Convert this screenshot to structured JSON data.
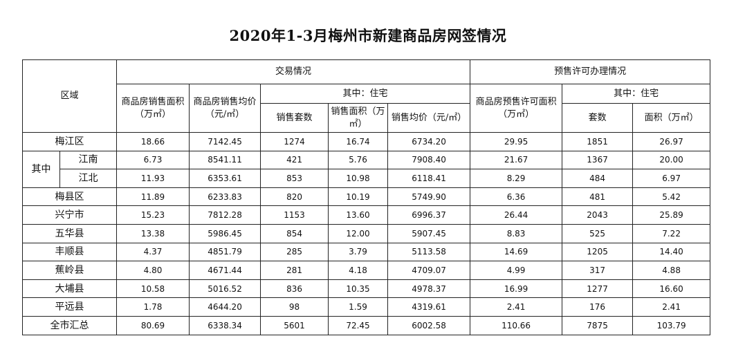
{
  "title": "2020年1-3月梅州市新建商品房网签情况",
  "headers": {
    "region": "区域",
    "trade": "交易情况",
    "presale": "预售许可办理情况",
    "area": "商品房销售面积（万㎡）",
    "price": "商品房销售均价（元/㎡）",
    "residential": "其中：住宅",
    "units": "销售套数",
    "res_area": "销售面积（万㎡）",
    "res_price": "销售均价（元/㎡）",
    "presale_area": "商品房预售许可面积（万㎡）",
    "presale_residential": "其中：住宅",
    "presale_units": "套数",
    "presale_res_area": "面积（万㎡）"
  },
  "subgroup_label": "其中",
  "rows": [
    {
      "region": "梅江区",
      "values": [
        "18.66",
        "7142.45",
        "1274",
        "16.74",
        "6734.20",
        "29.95",
        "1851",
        "26.97"
      ]
    },
    {
      "region": "江南",
      "values": [
        "6.73",
        "8541.11",
        "421",
        "5.76",
        "7908.40",
        "21.67",
        "1367",
        "20.00"
      ]
    },
    {
      "region": "江北",
      "values": [
        "11.93",
        "6353.61",
        "853",
        "10.98",
        "6118.41",
        "8.29",
        "484",
        "6.97"
      ]
    },
    {
      "region": "梅县区",
      "values": [
        "11.89",
        "6233.83",
        "820",
        "10.19",
        "5749.90",
        "6.36",
        "481",
        "5.42"
      ]
    },
    {
      "region": "兴宁市",
      "values": [
        "15.23",
        "7812.28",
        "1153",
        "13.60",
        "6996.37",
        "26.44",
        "2043",
        "25.89"
      ]
    },
    {
      "region": "五华县",
      "values": [
        "13.38",
        "5986.45",
        "854",
        "12.00",
        "5907.45",
        "8.83",
        "525",
        "7.22"
      ]
    },
    {
      "region": "丰顺县",
      "values": [
        "4.37",
        "4851.79",
        "285",
        "3.79",
        "5113.58",
        "14.69",
        "1205",
        "14.40"
      ]
    },
    {
      "region": "蕉岭县",
      "values": [
        "4.80",
        "4671.44",
        "281",
        "4.18",
        "4709.07",
        "4.99",
        "317",
        "4.88"
      ]
    },
    {
      "region": "大埔县",
      "values": [
        "10.58",
        "5016.52",
        "836",
        "10.35",
        "4978.37",
        "16.99",
        "1277",
        "16.60"
      ]
    },
    {
      "region": "平远县",
      "values": [
        "1.78",
        "4644.20",
        "98",
        "1.59",
        "4319.61",
        "2.41",
        "176",
        "2.41"
      ]
    },
    {
      "region": "全市汇总",
      "values": [
        "80.69",
        "6338.34",
        "5601",
        "72.45",
        "6002.58",
        "110.66",
        "7875",
        "103.79"
      ]
    }
  ]
}
